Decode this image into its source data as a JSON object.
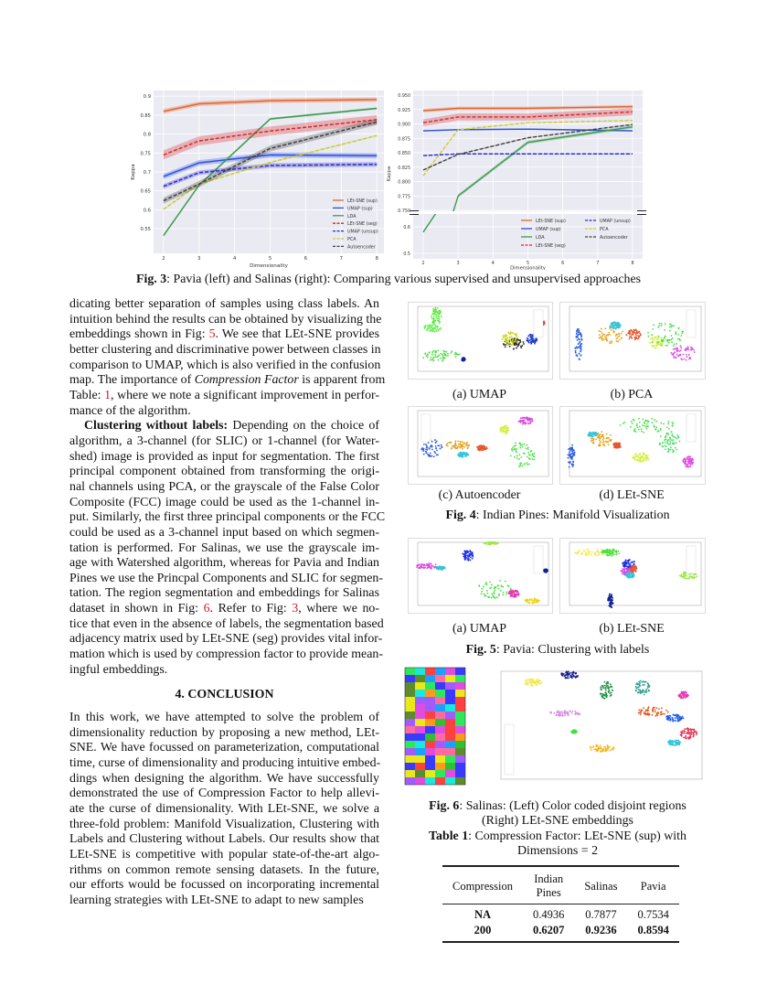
{
  "figure3": {
    "caption_label": "Fig. 3",
    "caption_text": ": Pavia (left) and Salinas (right): Comparing various supervised and unsupervised approaches"
  },
  "chart_data": [
    {
      "type": "line",
      "dataset": "Pavia",
      "xlabel": "Dimensionality",
      "ylabel": "Kappa",
      "x": [
        2,
        3,
        5,
        8
      ],
      "xticks": [
        2,
        3,
        4,
        5,
        6,
        7,
        8
      ],
      "yticks": [
        0.55,
        0.6,
        0.65,
        0.7,
        0.75,
        0.8,
        0.85,
        0.9
      ],
      "ylim": [
        0.485,
        0.915
      ],
      "xlim": [
        1.72,
        8.2
      ],
      "grid": true,
      "legend": "bottom-right",
      "series": [
        {
          "name": "LEt-SNE (sup)",
          "color": "#e5652e",
          "dash": false,
          "band": 0.006,
          "values": [
            0.86,
            0.88,
            0.888,
            0.891
          ]
        },
        {
          "name": "UMAP (sup)",
          "color": "#2a4fe0",
          "dash": false,
          "band": 0.007,
          "values": [
            0.688,
            0.724,
            0.745,
            0.743
          ]
        },
        {
          "name": "LDA",
          "color": "#3f9b4f",
          "dash": false,
          "band": 0.003,
          "values": [
            0.532,
            0.665,
            0.84,
            0.868
          ]
        },
        {
          "name": "LEt-SNE (seg)",
          "color": "#d62728",
          "dash": true,
          "band": 0.012,
          "values": [
            0.745,
            0.782,
            0.808,
            0.838
          ]
        },
        {
          "name": "UMAP (unsup)",
          "color": "#2b2bd0",
          "dash": true,
          "band": 0.006,
          "values": [
            0.662,
            0.698,
            0.717,
            0.72
          ]
        },
        {
          "name": "PCA",
          "color": "#c9cc32",
          "dash": true,
          "band": 0.002,
          "values": [
            0.601,
            0.668,
            0.725,
            0.796
          ]
        },
        {
          "name": "Autoencoder",
          "color": "#404040",
          "dash": true,
          "band": 0.008,
          "values": [
            0.624,
            0.668,
            0.762,
            0.832
          ]
        }
      ]
    },
    {
      "type": "line",
      "dataset": "Salinas",
      "xlabel": "Dimensionality",
      "ylabel": "Kappa",
      "x": [
        2,
        3,
        5,
        8
      ],
      "xticks": [
        2,
        3,
        4,
        5,
        6,
        7,
        8
      ],
      "yticks_upper": [
        "0.750",
        "0.775",
        "0.800",
        "0.825",
        "0.850",
        "0.875",
        "0.900",
        "0.925",
        "0.950"
      ],
      "yticks_lower": [
        "0.5",
        "0.6"
      ],
      "ylim_upper": [
        0.75,
        0.95
      ],
      "ylim_lower": [
        0.5,
        0.65
      ],
      "broken_axis": true,
      "grid": true,
      "legend": "bottom-right",
      "series": [
        {
          "name": "LEt-SNE (sup)",
          "color": "#e5652e",
          "dash": false,
          "band": 0.003,
          "values": [
            0.923,
            0.927,
            0.927,
            0.93
          ]
        },
        {
          "name": "UMAP (sup)",
          "color": "#2a4fe0",
          "dash": false,
          "band": 0.001,
          "values": [
            0.888,
            0.89,
            0.891,
            0.888
          ]
        },
        {
          "name": "LDA",
          "color": "#3f9b4f",
          "dash": false,
          "band": 0.003,
          "values": [
            0.58,
            0.775,
            0.868,
            0.895
          ]
        },
        {
          "name": "LEt-SNE (seg)",
          "color": "#d62728",
          "dash": true,
          "band": 0.006,
          "values": [
            0.902,
            0.912,
            0.912,
            0.921
          ]
        },
        {
          "name": "UMAP (unsup)",
          "color": "#2b2bd0",
          "dash": true,
          "band": 0.001,
          "values": [
            0.845,
            0.848,
            0.848,
            0.848
          ]
        },
        {
          "name": "PCA",
          "color": "#c9cc32",
          "dash": true,
          "band": 0.001,
          "values": [
            0.81,
            0.89,
            0.902,
            0.906
          ]
        },
        {
          "name": "Autoencoder",
          "color": "#404040",
          "dash": true,
          "band": 0.001,
          "values": [
            0.82,
            0.847,
            0.876,
            0.899
          ]
        }
      ]
    }
  ],
  "left_column": {
    "paragraphs": [
      [
        [
          "dicating better separation of samples using class labels. An"
        ],
        [
          "intuition behind the results can be obtained by visualizing the"
        ],
        [
          "embeddings shown in Fig: ",
          {
            "ref": "5"
          },
          ". We see that LEt-SNE provides"
        ],
        [
          "better clustering and discriminative power between classes in"
        ],
        [
          "comparison to UMAP, which is also verified in the confusion"
        ],
        [
          "map. The importance of ",
          {
            "i": "Compression Factor"
          },
          " is apparent from"
        ],
        [
          "Table: ",
          {
            "ref": "1"
          },
          ", where we note a significant improvement in perfor-"
        ],
        [
          "mance of the algorithm."
        ]
      ],
      [
        [
          {
            "b": "Clustering without labels:"
          },
          " Depending on the choice of"
        ],
        [
          "algorithm, a 3-channel (for SLIC) or 1-channel (for Water-"
        ],
        [
          "shed) image is provided as input for segmentation. The first"
        ],
        [
          "principal component obtained from transforming the origi-"
        ],
        [
          "nal channels using PCA, or the grayscale of the False Color"
        ],
        [
          "Composite (FCC) image could be used as the 1-channel in-"
        ],
        [
          "put. Similarly, the first three principal components or the FCC"
        ],
        [
          "could be used as a 3-channel input based on which segmen-"
        ],
        [
          "tation is performed. For Salinas, we use the grayscale im-"
        ],
        [
          "age with Watershed algorithm, whereas for Pavia and Indian"
        ],
        [
          "Pines we use the Princpal Components and SLIC for segmen-"
        ],
        [
          "tation. The region segmentation and embeddings for Salinas"
        ],
        [
          "dataset in shown in Fig: ",
          {
            "ref": "6"
          },
          ". Refer to Fig: ",
          {
            "ref": "3"
          },
          ", where we no-"
        ],
        [
          "tice that even in the absence of labels, the segmentation based"
        ],
        [
          "adjacency matrix used by LEt-SNE (seg) provides vital infor-"
        ],
        [
          "mation which is used by compression factor to provide mean-"
        ],
        [
          "ingful embeddings."
        ]
      ]
    ],
    "conclusion_heading": "4. CONCLUSION",
    "conclusion": [
      [
        [
          "In this work, we have attempted to solve the problem of"
        ],
        [
          "dimensionality reduction by proposing a new method, LEt-"
        ],
        [
          "SNE. We have focussed on parameterization, computational"
        ],
        [
          "time, curse of dimensionality and producing intuitive embed-"
        ],
        [
          "dings when designing the algorithm. We have successfully"
        ],
        [
          "demonstrated the use of Compression Factor to help allevi-"
        ],
        [
          "ate the curse of dimensionality. With LEt-SNE, we solve a"
        ],
        [
          "three-fold problem: Manifold Visualization, Clustering with"
        ],
        [
          "Labels and Clustering without Labels. Our results show that"
        ],
        [
          "LEt-SNE is competitive with popular state-of-the-art algo-"
        ],
        [
          "rithms on common remote sensing datasets. In the future,"
        ],
        [
          "our efforts would be focussed on incorporating incremental"
        ],
        [
          "learning strategies with LEt-SNE to adapt to new samples"
        ]
      ]
    ]
  },
  "figure4": {
    "sub_a": "(a) UMAP",
    "sub_b": "(b) PCA",
    "sub_c": "(c) Autoencoder",
    "sub_d": "(d) LEt-SNE",
    "caption_label": "Fig. 4",
    "caption_text": ": Indian Pines: Manifold Visualization"
  },
  "figure5": {
    "sub_a": "(a) UMAP",
    "sub_b": "(b) LEt-SNE",
    "caption_label": "Fig. 5",
    "caption_text": ": Pavia: Clustering with labels"
  },
  "figure6": {
    "caption_label": "Fig. 6",
    "caption_line1": ": Salinas: (Left) Color coded disjoint regions",
    "caption_line2": "(Right) LEt-SNE embeddings"
  },
  "table1": {
    "caption_label": "Table 1",
    "caption_line1": ": Compression Factor: LEt-SNE (sup) with",
    "caption_line2": "Dimensions = 2",
    "headers": [
      "Compression",
      "Indian Pines",
      "Salinas",
      "Pavia"
    ],
    "rows": [
      [
        "NA",
        "0.4936",
        "0.7877",
        "0.7534"
      ],
      [
        "200",
        "0.6207",
        "0.9236",
        "0.8594"
      ]
    ]
  }
}
